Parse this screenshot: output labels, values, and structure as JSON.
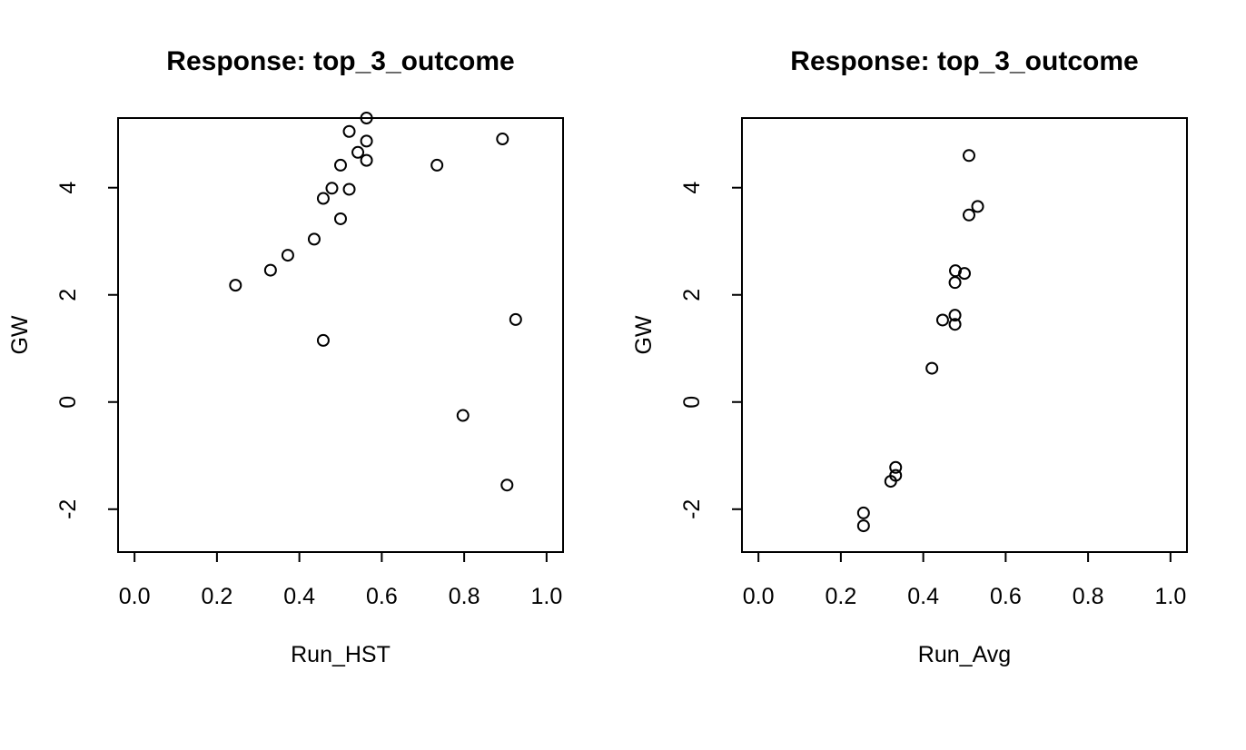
{
  "chart_data": [
    {
      "type": "scatter",
      "title": "Response: top_3_outcome",
      "xlabel": "Run_HST",
      "ylabel": "GW",
      "xlim": [
        -0.04,
        1.04
      ],
      "ylim": [
        -2.8,
        5.3
      ],
      "xticks": [
        "0.0",
        "0.2",
        "0.4",
        "0.6",
        "0.8",
        "1.0"
      ],
      "yticks": [
        "-2",
        "0",
        "2",
        "4"
      ],
      "grid": false,
      "points": [
        {
          "x": 0.245,
          "y": 2.18
        },
        {
          "x": 0.33,
          "y": 2.46
        },
        {
          "x": 0.372,
          "y": 2.74
        },
        {
          "x": 0.436,
          "y": 3.04
        },
        {
          "x": 0.458,
          "y": 3.8
        },
        {
          "x": 0.458,
          "y": 1.15
        },
        {
          "x": 0.479,
          "y": 3.99
        },
        {
          "x": 0.5,
          "y": 4.42
        },
        {
          "x": 0.5,
          "y": 3.42
        },
        {
          "x": 0.521,
          "y": 5.05
        },
        {
          "x": 0.521,
          "y": 3.97
        },
        {
          "x": 0.542,
          "y": 4.66
        },
        {
          "x": 0.563,
          "y": 5.3
        },
        {
          "x": 0.563,
          "y": 4.87
        },
        {
          "x": 0.563,
          "y": 4.51
        },
        {
          "x": 0.734,
          "y": 4.42
        },
        {
          "x": 0.797,
          "y": -0.25
        },
        {
          "x": 0.893,
          "y": 4.91
        },
        {
          "x": 0.904,
          "y": -1.55
        },
        {
          "x": 0.925,
          "y": 1.54
        }
      ]
    },
    {
      "type": "scatter",
      "title": "Response: top_3_outcome",
      "xlabel": "Run_Avg",
      "ylabel": "GW",
      "xlim": [
        -0.04,
        1.04
      ],
      "ylim": [
        -2.8,
        5.3
      ],
      "xticks": [
        "0.0",
        "0.2",
        "0.4",
        "0.6",
        "0.8",
        "1.0"
      ],
      "yticks": [
        "-2",
        "0",
        "2",
        "4"
      ],
      "grid": false,
      "points": [
        {
          "x": 0.255,
          "y": -2.07
        },
        {
          "x": 0.255,
          "y": -2.31
        },
        {
          "x": 0.321,
          "y": -1.48
        },
        {
          "x": 0.333,
          "y": -1.22
        },
        {
          "x": 0.333,
          "y": -1.37
        },
        {
          "x": 0.421,
          "y": 0.63
        },
        {
          "x": 0.447,
          "y": 1.53
        },
        {
          "x": 0.477,
          "y": 1.45
        },
        {
          "x": 0.477,
          "y": 1.62
        },
        {
          "x": 0.477,
          "y": 2.23
        },
        {
          "x": 0.478,
          "y": 2.45
        },
        {
          "x": 0.5,
          "y": 2.4
        },
        {
          "x": 0.511,
          "y": 3.49
        },
        {
          "x": 0.511,
          "y": 4.6
        },
        {
          "x": 0.532,
          "y": 3.65
        }
      ]
    }
  ]
}
